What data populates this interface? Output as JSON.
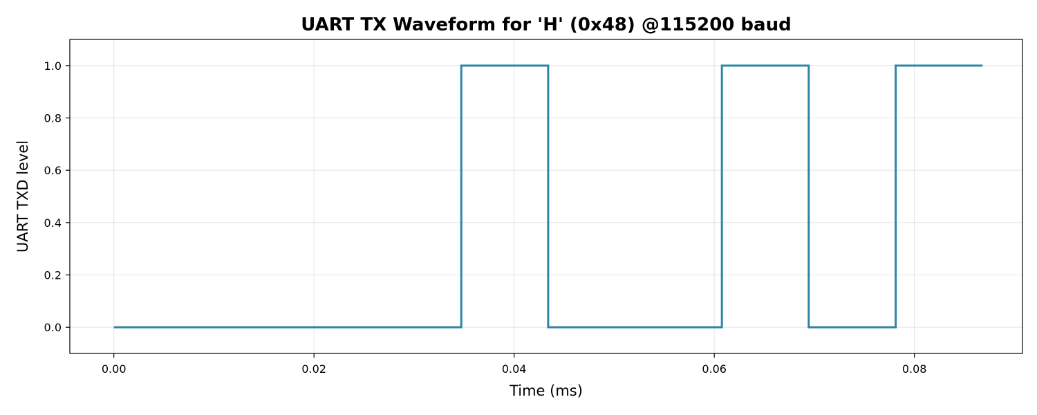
{
  "chart_data": {
    "type": "line",
    "step": "post",
    "title": "UART TX Waveform for 'H' (0x48) @115200 baud",
    "xlabel": "Time (ms)",
    "ylabel": "UART TXD level",
    "xlim": [
      -0.0044,
      0.0908
    ],
    "ylim": [
      -0.1,
      1.1
    ],
    "xticks": [
      0.0,
      0.02,
      0.04,
      0.06,
      0.08
    ],
    "xtick_labels": [
      "0.00",
      "0.02",
      "0.04",
      "0.06",
      "0.08"
    ],
    "yticks": [
      0.0,
      0.2,
      0.4,
      0.6,
      0.8,
      1.0
    ],
    "ytick_labels": [
      "0.0",
      "0.2",
      "0.4",
      "0.6",
      "0.8",
      "1.0"
    ],
    "grid": true,
    "color": "#2e86a6",
    "series": [
      {
        "x": [
          0.0,
          0.03472,
          0.0434,
          0.06076,
          0.06944,
          0.07813,
          0.08681
        ],
        "y": [
          0,
          1,
          0,
          1,
          0,
          1,
          1
        ]
      }
    ]
  }
}
